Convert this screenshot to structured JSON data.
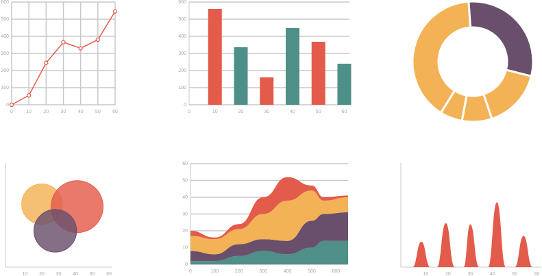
{
  "chart_data": [
    {
      "type": "line",
      "x": [
        0,
        10,
        20,
        30,
        40,
        50,
        60
      ],
      "series": [
        {
          "color": "#e35b4b",
          "values": [
            0,
            55,
            245,
            365,
            330,
            380,
            545
          ]
        }
      ],
      "xlim": [
        0,
        60
      ],
      "xticks": [
        0,
        10,
        20,
        30,
        40,
        50,
        60
      ],
      "ylim": [
        0,
        600
      ],
      "yticks": [
        0,
        100,
        200,
        300,
        400,
        500,
        600
      ],
      "grid": "both"
    },
    {
      "type": "bar",
      "x": [
        10,
        20,
        30,
        40,
        50,
        60
      ],
      "values": [
        560,
        336,
        160,
        448,
        368,
        240
      ],
      "colors": [
        "#e35b4b",
        "#4e8f87",
        "#e35b4b",
        "#4e8f87",
        "#e35b4b",
        "#4e8f87"
      ],
      "xlim": [
        0,
        62
      ],
      "xticks": [
        0,
        10,
        20,
        30,
        40,
        50,
        60
      ],
      "ylim": [
        0,
        600
      ],
      "yticks": [
        0,
        100,
        200,
        300,
        400,
        500,
        600
      ],
      "grid": "y"
    },
    {
      "type": "pie",
      "donut": true,
      "values": [
        30,
        16,
        8,
        6,
        40
      ],
      "colors": [
        "#6a4f6c",
        "#f4b256",
        "#f4b256",
        "#f4b256",
        "#f4b256"
      ]
    },
    {
      "type": "scatter",
      "x": [
        20,
        41,
        28
      ],
      "y": [
        37.5,
        36,
        21.6
      ],
      "size": [
        12,
        15.5,
        12.7
      ],
      "colors": [
        "#f4b256",
        "#e35b4b",
        "#6a4f6c"
      ],
      "xlim": [
        0,
        62
      ],
      "xticks": [
        10,
        20,
        30,
        40,
        50,
        60
      ],
      "ylim": [
        0,
        62
      ]
    },
    {
      "type": "area",
      "stacked": true,
      "x": [
        0,
        100,
        200,
        300,
        400,
        500,
        550,
        650
      ],
      "series": [
        {
          "color": "#4e8f87",
          "values": [
            2,
            2,
            5,
            8,
            6,
            10,
            14,
            14
          ]
        },
        {
          "color": "#6a4f6c",
          "values": [
            6,
            4,
            7,
            7,
            8,
            16,
            16,
            17
          ]
        },
        {
          "color": "#f4b256",
          "values": [
            9,
            9,
            9,
            15,
            24,
            18,
            8,
            9
          ]
        },
        {
          "color": "#e35b4b",
          "values": [
            3,
            1,
            3,
            10,
            14,
            3,
            2,
            1
          ]
        }
      ],
      "xlim": [
        0,
        650
      ],
      "xticks": [
        0,
        100,
        200,
        300,
        400,
        500,
        600
      ],
      "ylim": [
        0,
        60
      ],
      "yticks": [
        0,
        10,
        20,
        30,
        40,
        50,
        60
      ],
      "grid": "y"
    },
    {
      "type": "area",
      "x": [
        0,
        4,
        8,
        12,
        15,
        19,
        23,
        27,
        30,
        34,
        38,
        42,
        46,
        50,
        54,
        58,
        60
      ],
      "series": [
        {
          "color": "#e35b4b",
          "values": [
            0,
            0,
            11,
            0,
            0,
            19,
            0,
            0,
            18.5,
            0,
            0,
            28,
            0,
            0,
            13.5,
            0,
            0
          ]
        }
      ],
      "xlim": [
        0,
        62
      ],
      "xticks": [
        10,
        20,
        30,
        40,
        50,
        60
      ],
      "ylim": [
        0,
        45
      ]
    }
  ]
}
